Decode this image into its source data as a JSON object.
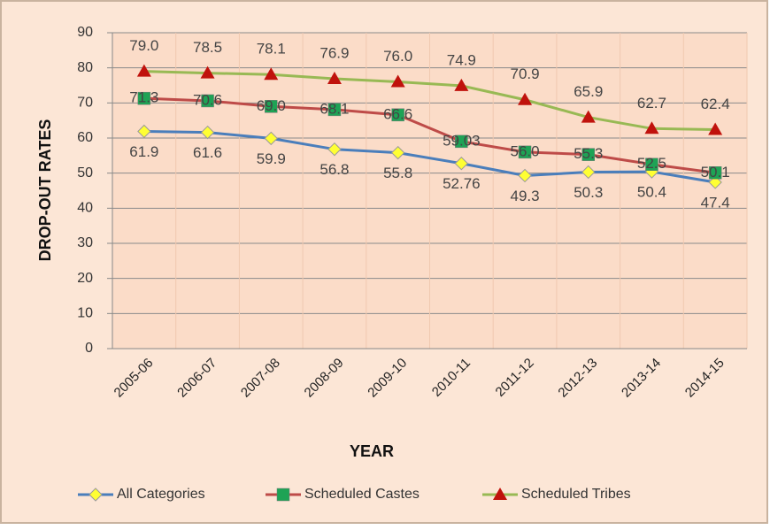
{
  "chart_data": {
    "type": "line",
    "x_label": "YEAR",
    "y_label": "DROP-OUT RATES",
    "categories": [
      "2005-06",
      "2006-07",
      "2007-08",
      "2008-09",
      "2009-10",
      "2010-11",
      "2011-12",
      "2012-13",
      "2013-14",
      "2014-15"
    ],
    "series": [
      {
        "name": "All Categories",
        "color": "#4a7ebb",
        "marker_color": "#ffff33",
        "values": [
          61.9,
          61.6,
          59.9,
          56.8,
          55.8,
          52.76,
          49.3,
          50.3,
          50.4,
          47.4
        ],
        "value_labels": [
          "61.9",
          "61.6",
          "59.9",
          "56.8",
          "55.8",
          "52.76",
          "49.3",
          "50.3",
          "50.4",
          "47.4"
        ]
      },
      {
        "name": "Scheduled Castes",
        "color": "#be4b48",
        "marker_color": "#1ea355",
        "values": [
          71.3,
          70.6,
          69.0,
          68.1,
          66.6,
          59.03,
          56.0,
          55.3,
          52.5,
          50.1
        ],
        "value_labels": [
          "71.3",
          "70.6",
          "69.0",
          "68.1",
          "66.6",
          "59.03",
          "56.0",
          "55.3",
          "52.5",
          "50.1"
        ]
      },
      {
        "name": "Scheduled Tribes",
        "color": "#98b954",
        "marker_color": "#c0120c",
        "values": [
          79.0,
          78.5,
          78.1,
          76.9,
          76.0,
          74.9,
          70.9,
          65.9,
          62.7,
          62.4
        ],
        "value_labels": [
          "79.0",
          "78.5",
          "78.1",
          "76.9",
          "76.0",
          "74.9",
          "70.9",
          "65.9",
          "62.7",
          "62.4"
        ]
      }
    ],
    "ylim": [
      0,
      90
    ],
    "yticks": [
      0,
      10,
      20,
      30,
      40,
      50,
      60,
      70,
      80,
      90
    ],
    "grid": true,
    "legend": "bottom"
  }
}
